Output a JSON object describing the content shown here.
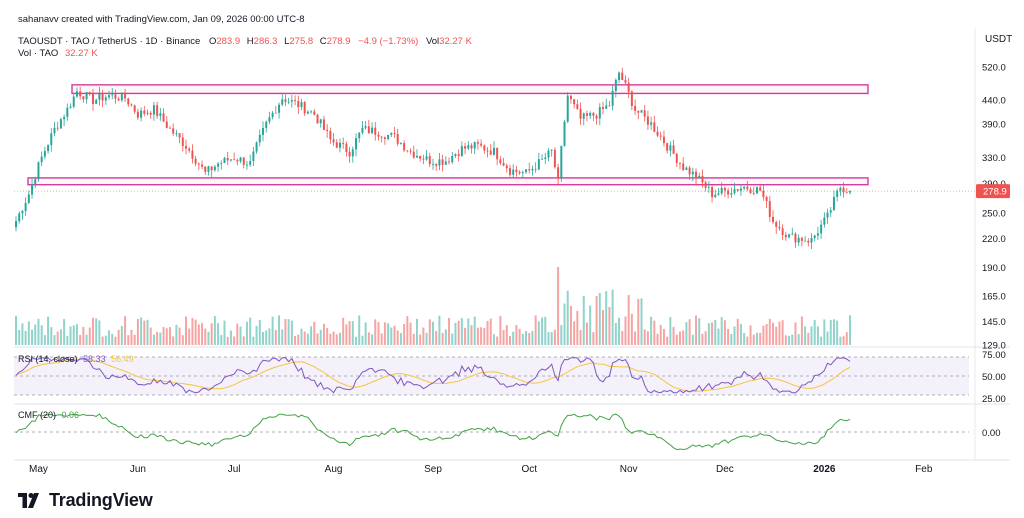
{
  "header": {
    "attribution": "sahanavv created with TradingView.com, Jan 09, 2026 00:00 UTC-8",
    "symbol": "TAOUSDT · TAO / TetherUS · 1D · Binance",
    "ohlc": [
      {
        "label": "O",
        "value": "283.9"
      },
      {
        "label": "H",
        "value": "286.3"
      },
      {
        "label": "L",
        "value": "275.8"
      },
      {
        "label": "C",
        "value": "278.9"
      }
    ],
    "change": "−4.9 (−1.73%)",
    "vol_label": "Vol",
    "vol_value": "32.27 K",
    "vol_indicator_label": "Vol · TAO",
    "vol_indicator_value": "32.27 K",
    "currency": "USDT"
  },
  "price_axis": [
    "520.0",
    "440.0",
    "390.0",
    "330.0",
    "290.0",
    "250.0",
    "220.0",
    "190.0",
    "165.0",
    "145.0",
    "129.0"
  ],
  "last_price": "278.9",
  "rsi": {
    "label": "RSI (14, close)",
    "value": "58.33",
    "value2": "56.49",
    "levels": [
      "75.00",
      "50.00",
      "25.00"
    ]
  },
  "cmf": {
    "label": "CMF (20)",
    "value": "0.06",
    "levels": [
      "0.00"
    ]
  },
  "months": [
    "May",
    "Jun",
    "Jul",
    "Aug",
    "Sep",
    "Oct",
    "Nov",
    "Dec",
    "2026",
    "Feb"
  ],
  "footer": {
    "brand": "TradingView"
  },
  "colors": {
    "up": "#26a69a",
    "down": "#ef5350",
    "zone": "#d63a9c",
    "rsi": "#7e57c2",
    "rsi_ma": "#f4c542",
    "cmf": "#43a047",
    "vol_up": "#8fd3cb",
    "vol_down": "#f5a4a2"
  },
  "chart_data": {
    "type": "candlestick",
    "x_labels": [
      "May",
      "Jun",
      "Jul",
      "Aug",
      "Sep",
      "Oct",
      "Nov",
      "Dec",
      "2026",
      "Feb"
    ],
    "y_scale": "log",
    "ylim": [
      129,
      560
    ],
    "close_path": [
      {
        "date": "2025-04-24",
        "close": 240
      },
      {
        "date": "2025-04-28",
        "close": 275
      },
      {
        "date": "2025-05-02",
        "close": 330
      },
      {
        "date": "2025-05-06",
        "close": 380
      },
      {
        "date": "2025-05-10",
        "close": 420
      },
      {
        "date": "2025-05-13",
        "close": 460
      },
      {
        "date": "2025-05-18",
        "close": 440
      },
      {
        "date": "2025-05-23",
        "close": 450
      },
      {
        "date": "2025-05-28",
        "close": 445
      },
      {
        "date": "2025-06-01",
        "close": 410
      },
      {
        "date": "2025-06-06",
        "close": 420
      },
      {
        "date": "2025-06-11",
        "close": 380
      },
      {
        "date": "2025-06-16",
        "close": 350
      },
      {
        "date": "2025-06-22",
        "close": 305
      },
      {
        "date": "2025-06-26",
        "close": 320
      },
      {
        "date": "2025-07-01",
        "close": 330
      },
      {
        "date": "2025-07-06",
        "close": 320
      },
      {
        "date": "2025-07-11",
        "close": 390
      },
      {
        "date": "2025-07-16",
        "close": 445
      },
      {
        "date": "2025-07-21",
        "close": 430
      },
      {
        "date": "2025-07-26",
        "close": 410
      },
      {
        "date": "2025-07-31",
        "close": 360
      },
      {
        "date": "2025-08-06",
        "close": 340
      },
      {
        "date": "2025-08-10",
        "close": 380
      },
      {
        "date": "2025-08-15",
        "close": 375
      },
      {
        "date": "2025-08-20",
        "close": 365
      },
      {
        "date": "2025-08-25",
        "close": 340
      },
      {
        "date": "2025-08-31",
        "close": 325
      },
      {
        "date": "2025-09-05",
        "close": 325
      },
      {
        "date": "2025-09-10",
        "close": 345
      },
      {
        "date": "2025-09-15",
        "close": 350
      },
      {
        "date": "2025-09-20",
        "close": 340
      },
      {
        "date": "2025-09-25",
        "close": 310
      },
      {
        "date": "2025-09-30",
        "close": 305
      },
      {
        "date": "2025-10-05",
        "close": 325
      },
      {
        "date": "2025-10-08",
        "close": 340
      },
      {
        "date": "2025-10-10",
        "close": 290
      },
      {
        "date": "2025-10-13",
        "close": 450
      },
      {
        "date": "2025-10-17",
        "close": 400
      },
      {
        "date": "2025-10-22",
        "close": 410
      },
      {
        "date": "2025-10-26",
        "close": 430
      },
      {
        "date": "2025-10-29",
        "close": 505
      },
      {
        "date": "2025-11-03",
        "close": 420
      },
      {
        "date": "2025-11-08",
        "close": 390
      },
      {
        "date": "2025-11-13",
        "close": 350
      },
      {
        "date": "2025-11-18",
        "close": 315
      },
      {
        "date": "2025-11-22",
        "close": 300
      },
      {
        "date": "2025-11-27",
        "close": 275
      },
      {
        "date": "2025-12-02",
        "close": 280
      },
      {
        "date": "2025-12-07",
        "close": 285
      },
      {
        "date": "2025-12-12",
        "close": 280
      },
      {
        "date": "2025-12-16",
        "close": 240
      },
      {
        "date": "2025-12-21",
        "close": 222
      },
      {
        "date": "2025-12-28",
        "close": 218
      },
      {
        "date": "2026-01-02",
        "close": 245
      },
      {
        "date": "2026-01-06",
        "close": 285
      },
      {
        "date": "2026-01-09",
        "close": 278.9
      }
    ],
    "resistance_zone": [
      455,
      475
    ],
    "support_zone": [
      288,
      298
    ],
    "last_price": 278.9,
    "rsi_ylim": [
      25,
      75
    ],
    "rsi_levels": [
      75,
      50,
      25
    ],
    "cmf_level": 0
  }
}
